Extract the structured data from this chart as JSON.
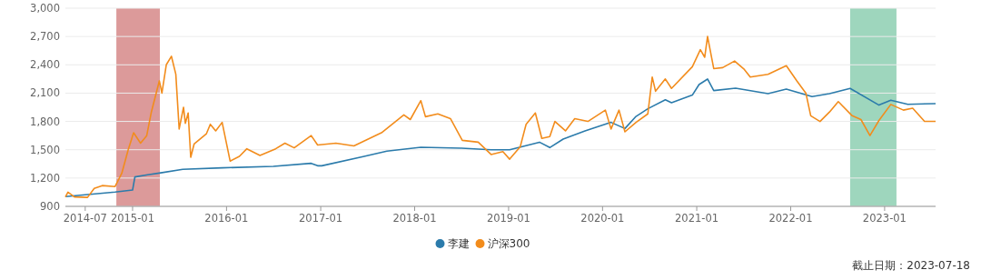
{
  "chart_data": {
    "type": "line",
    "xlim": [
      "2014-04-15",
      "2023-07-18"
    ],
    "ylim": [
      900,
      3000
    ],
    "yticks": [
      {
        "value": 900,
        "label": "900"
      },
      {
        "value": 1200,
        "label": "1,200"
      },
      {
        "value": 1500,
        "label": "1,500"
      },
      {
        "value": 1800,
        "label": "1,800"
      },
      {
        "value": 2100,
        "label": "2,100"
      },
      {
        "value": 2400,
        "label": "2,400"
      },
      {
        "value": 2700,
        "label": "2,700"
      },
      {
        "value": 3000,
        "label": "3,000"
      }
    ],
    "xticks": [
      "2014-07",
      "2015-01",
      "2016-01",
      "2017-01",
      "2018-01",
      "2019-01",
      "2020-01",
      "2021-01",
      "2022-01",
      "2023-01"
    ],
    "grid": "y",
    "legend": "bottom",
    "marker": "none",
    "line_style": "solid",
    "bands": [
      {
        "axis": "x",
        "from": "2014-10-30",
        "to": "2015-04-17",
        "color": "#dc9a9a"
      },
      {
        "axis": "x",
        "from": "2022-08-20",
        "to": "2023-02-16",
        "color": "#9ed6bd"
      }
    ],
    "annotations": [
      "截止日期：2023-07-18"
    ],
    "series": [
      {
        "name": "李建",
        "color": "#2b7bab",
        "x": [
          "2014-04-15",
          "2014-10-25",
          "2015-01-01",
          "2015-01-10",
          "2015-03-01",
          "2015-04-15",
          "2015-07-15",
          "2015-12-15",
          "2016-07-01",
          "2016-11-25",
          "2016-12-20",
          "2017-01-05",
          "2017-06-15",
          "2017-09-15",
          "2018-01-25",
          "2018-07-01",
          "2018-10-25",
          "2019-01-05",
          "2019-05-01",
          "2019-06-10",
          "2019-08-01",
          "2019-10-25",
          "2020-02-03",
          "2020-03-28",
          "2020-05-10",
          "2020-06-25",
          "2020-09-01",
          "2020-09-25",
          "2020-12-15",
          "2021-01-10",
          "2021-02-12",
          "2021-03-08",
          "2021-06-01",
          "2021-10-05",
          "2021-12-15",
          "2022-03-25",
          "2022-06-01",
          "2022-08-20",
          "2022-12-10",
          "2023-01-25",
          "2023-04-01",
          "2023-07-18"
        ],
        "values": [
          1003,
          1051,
          1073,
          1212,
          1234,
          1253,
          1292,
          1308,
          1324,
          1356,
          1330,
          1330,
          1427,
          1485,
          1526,
          1517,
          1500,
          1500,
          1580,
          1523,
          1613,
          1700,
          1790,
          1725,
          1853,
          1934,
          2030,
          1998,
          2079,
          2191,
          2249,
          2127,
          2153,
          2095,
          2143,
          2063,
          2095,
          2150,
          1973,
          2024,
          1982,
          1989
        ]
      },
      {
        "name": "沪深300",
        "color": "#f28c1c",
        "x": [
          "2014-04-15",
          "2014-04-25",
          "2014-05-20",
          "2014-07-10",
          "2014-08-05",
          "2014-09-05",
          "2014-10-25",
          "2014-11-20",
          "2014-12-15",
          "2015-01-05",
          "2015-02-01",
          "2015-02-25",
          "2015-03-15",
          "2015-04-15",
          "2015-04-25",
          "2015-05-12",
          "2015-06-01",
          "2015-06-18",
          "2015-07-01",
          "2015-07-18",
          "2015-07-25",
          "2015-08-05",
          "2015-08-15",
          "2015-08-28",
          "2015-10-15",
          "2015-10-30",
          "2015-11-20",
          "2015-12-15",
          "2016-01-15",
          "2016-02-20",
          "2016-03-20",
          "2016-05-10",
          "2016-07-10",
          "2016-08-15",
          "2016-09-20",
          "2016-11-25",
          "2016-12-20",
          "2017-03-01",
          "2017-05-10",
          "2017-08-25",
          "2017-11-20",
          "2017-12-15",
          "2018-01-25",
          "2018-02-12",
          "2018-04-01",
          "2018-05-20",
          "2018-07-05",
          "2018-09-05",
          "2018-10-25",
          "2018-12-10",
          "2019-01-05",
          "2019-02-15",
          "2019-03-10",
          "2019-04-15",
          "2019-05-10",
          "2019-06-10",
          "2019-06-30",
          "2019-08-10",
          "2019-09-15",
          "2019-11-05",
          "2020-01-12",
          "2020-02-03",
          "2020-03-05",
          "2020-03-28",
          "2020-05-10",
          "2020-06-25",
          "2020-07-12",
          "2020-07-25",
          "2020-09-01",
          "2020-09-25",
          "2020-12-15",
          "2021-01-15",
          "2021-02-01",
          "2021-02-12",
          "2021-03-08",
          "2021-04-12",
          "2021-05-28",
          "2021-07-05",
          "2021-07-28",
          "2021-10-05",
          "2021-12-15",
          "2022-01-25",
          "2022-03-01",
          "2022-03-20",
          "2022-04-25",
          "2022-06-01",
          "2022-07-05",
          "2022-08-28",
          "2022-10-01",
          "2022-11-05",
          "2022-12-10",
          "2023-01-25",
          "2023-03-15",
          "2023-04-20",
          "2023-06-05",
          "2023-07-18"
        ],
        "values": [
          1000,
          1050,
          1000,
          995,
          1090,
          1120,
          1110,
          1250,
          1500,
          1680,
          1570,
          1650,
          1900,
          2230,
          2100,
          2400,
          2490,
          2300,
          1720,
          1950,
          1780,
          1890,
          1420,
          1560,
          1670,
          1770,
          1700,
          1790,
          1380,
          1430,
          1510,
          1440,
          1510,
          1570,
          1520,
          1650,
          1550,
          1570,
          1540,
          1680,
          1870,
          1820,
          2020,
          1850,
          1880,
          1830,
          1600,
          1580,
          1450,
          1480,
          1400,
          1530,
          1770,
          1890,
          1620,
          1640,
          1800,
          1700,
          1830,
          1800,
          1920,
          1720,
          1920,
          1690,
          1790,
          1880,
          2270,
          2120,
          2250,
          2150,
          2380,
          2560,
          2480,
          2700,
          2360,
          2370,
          2440,
          2350,
          2270,
          2300,
          2390,
          2230,
          2100,
          1860,
          1800,
          1900,
          2010,
          1860,
          1820,
          1650,
          1810,
          1980,
          1920,
          1940,
          1800,
          1800
        ]
      }
    ]
  }
}
